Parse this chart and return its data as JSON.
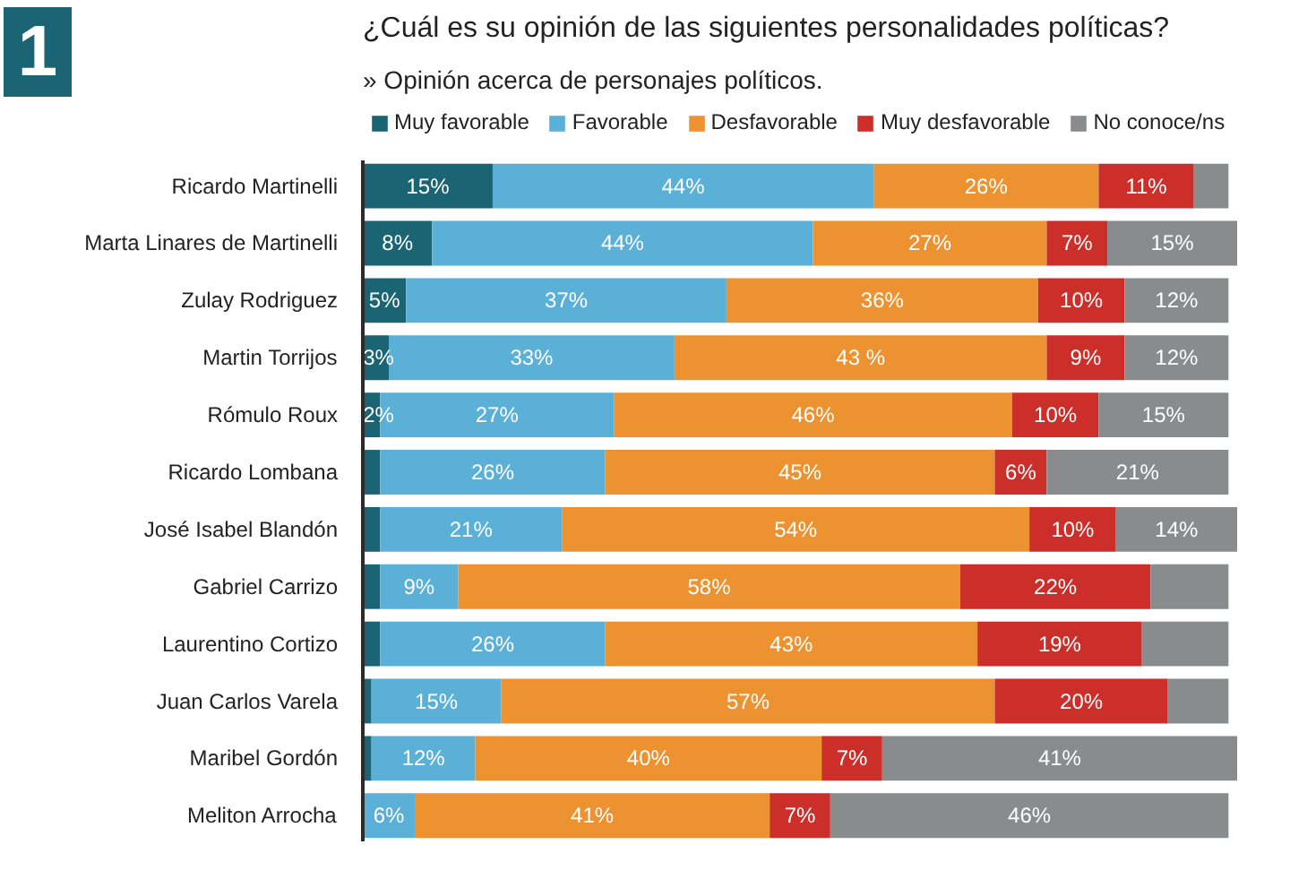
{
  "chart_data": {
    "type": "bar",
    "orientation": "horizontal",
    "stacked": true,
    "title": "¿Cuál es su opinión de las siguientes personalidades políticas?",
    "subtitle": "» Opinión acerca de personajes políticos.",
    "annotations": [
      "1"
    ],
    "categories": [
      "Ricardo Martinelli",
      "Marta Linares de Martinelli",
      "Zulay Rodriguez",
      "Martin Torrijos",
      "Rómulo Roux",
      "Ricardo Lombana",
      "José Isabel Blandón",
      "Gabriel Carrizo",
      "Laurentino Cortizo",
      "Juan Carlos Varela",
      "Maribel Gordón",
      "Meliton Arrocha"
    ],
    "series": [
      {
        "name": "Muy favorable",
        "color": "#1b6473",
        "values": [
          15,
          8,
          5,
          3,
          2,
          2,
          2,
          2,
          2,
          1,
          1,
          null
        ],
        "value_labels": [
          "15%",
          "8%",
          "5%",
          "3%",
          "2%",
          null,
          null,
          null,
          null,
          null,
          null,
          null
        ]
      },
      {
        "name": "Favorable",
        "color": "#5bb0d8",
        "values": [
          44,
          44,
          37,
          33,
          27,
          26,
          21,
          9,
          26,
          15,
          12,
          6
        ],
        "value_labels": [
          "44%",
          "44%",
          "37%",
          "33%",
          "27%",
          "26%",
          "21%",
          "9%",
          "26%",
          "15%",
          "12%",
          "6%"
        ]
      },
      {
        "name": "Desfavorable",
        "color": "#ec9230",
        "values": [
          26,
          27,
          36,
          43,
          46,
          45,
          54,
          58,
          43,
          57,
          40,
          41
        ],
        "value_labels": [
          "26%",
          "27%",
          "36%",
          "43 %",
          "46%",
          "45%",
          "54%",
          "58%",
          "43%",
          "57%",
          "40%",
          "41%"
        ]
      },
      {
        "name": "Muy desfavorable",
        "color": "#cc2f2a",
        "values": [
          11,
          7,
          10,
          9,
          10,
          6,
          10,
          22,
          19,
          20,
          7,
          7
        ],
        "value_labels": [
          "11%",
          "7%",
          "10%",
          "9%",
          "10%",
          "6%",
          "10%",
          "22%",
          "19%",
          "20%",
          "7%",
          "7%"
        ]
      },
      {
        "name": "No conoce/ns",
        "color": "#8a8b8d",
        "values": [
          4,
          15,
          12,
          12,
          15,
          21,
          14,
          9,
          10,
          7,
          41,
          46
        ],
        "value_labels": [
          null,
          "15%",
          "12%",
          "12%",
          "15%",
          "21%",
          "14%",
          null,
          null,
          null,
          "41%",
          "46%"
        ]
      }
    ],
    "legend": "top left"
  }
}
